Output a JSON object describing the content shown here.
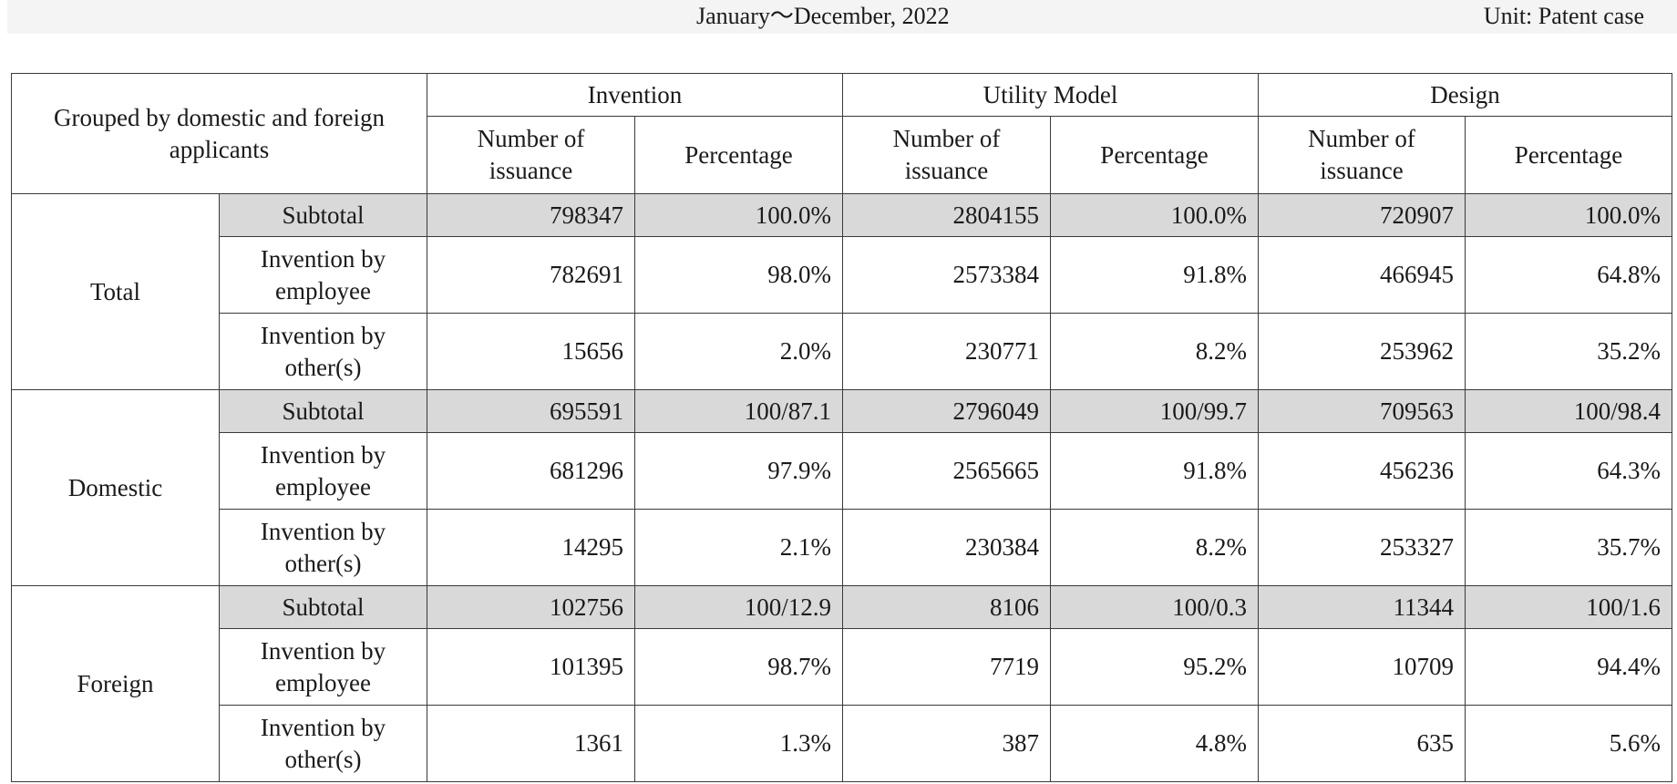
{
  "header": {
    "period": "January～December, 2022",
    "unit": "Unit: Patent case"
  },
  "table": {
    "group_header": "Grouped by domestic and foreign applicants",
    "categories": [
      "Invention",
      "Utility Model",
      "Design"
    ],
    "sub_headers": {
      "count": "Number of issuance",
      "percentage": "Percentage"
    },
    "groups": [
      {
        "label": "Total",
        "rows": [
          {
            "label": "Subtotal",
            "invention_count": "798347",
            "invention_pct": "100.0%",
            "utility_count": "2804155",
            "utility_pct": "100.0%",
            "design_count": "720907",
            "design_pct": "100.0%"
          },
          {
            "label": "Invention by employee",
            "invention_count": "782691",
            "invention_pct": "98.0%",
            "utility_count": "2573384",
            "utility_pct": "91.8%",
            "design_count": "466945",
            "design_pct": "64.8%"
          },
          {
            "label": "Invention by other(s)",
            "invention_count": "15656",
            "invention_pct": "2.0%",
            "utility_count": "230771",
            "utility_pct": "8.2%",
            "design_count": "253962",
            "design_pct": "35.2%"
          }
        ]
      },
      {
        "label": "Domestic",
        "rows": [
          {
            "label": "Subtotal",
            "invention_count": "695591",
            "invention_pct": "100/87.1",
            "utility_count": "2796049",
            "utility_pct": "100/99.7",
            "design_count": "709563",
            "design_pct": "100/98.4"
          },
          {
            "label": "Invention by employee",
            "invention_count": "681296",
            "invention_pct": "97.9%",
            "utility_count": "2565665",
            "utility_pct": "91.8%",
            "design_count": "456236",
            "design_pct": "64.3%"
          },
          {
            "label": "Invention by other(s)",
            "invention_count": "14295",
            "invention_pct": "2.1%",
            "utility_count": "230384",
            "utility_pct": "8.2%",
            "design_count": "253327",
            "design_pct": "35.7%"
          }
        ]
      },
      {
        "label": "Foreign",
        "rows": [
          {
            "label": "Subtotal",
            "invention_count": "102756",
            "invention_pct": "100/12.9",
            "utility_count": "8106",
            "utility_pct": "100/0.3",
            "design_count": "11344",
            "design_pct": "100/1.6"
          },
          {
            "label": "Invention by employee",
            "invention_count": "101395",
            "invention_pct": "98.7%",
            "utility_count": "7719",
            "utility_pct": "95.2%",
            "design_count": "10709",
            "design_pct": "94.4%"
          },
          {
            "label": "Invention by other(s)",
            "invention_count": "1361",
            "invention_pct": "1.3%",
            "utility_count": "387",
            "utility_pct": "4.8%",
            "design_count": "635",
            "design_pct": "5.6%"
          }
        ]
      }
    ]
  }
}
